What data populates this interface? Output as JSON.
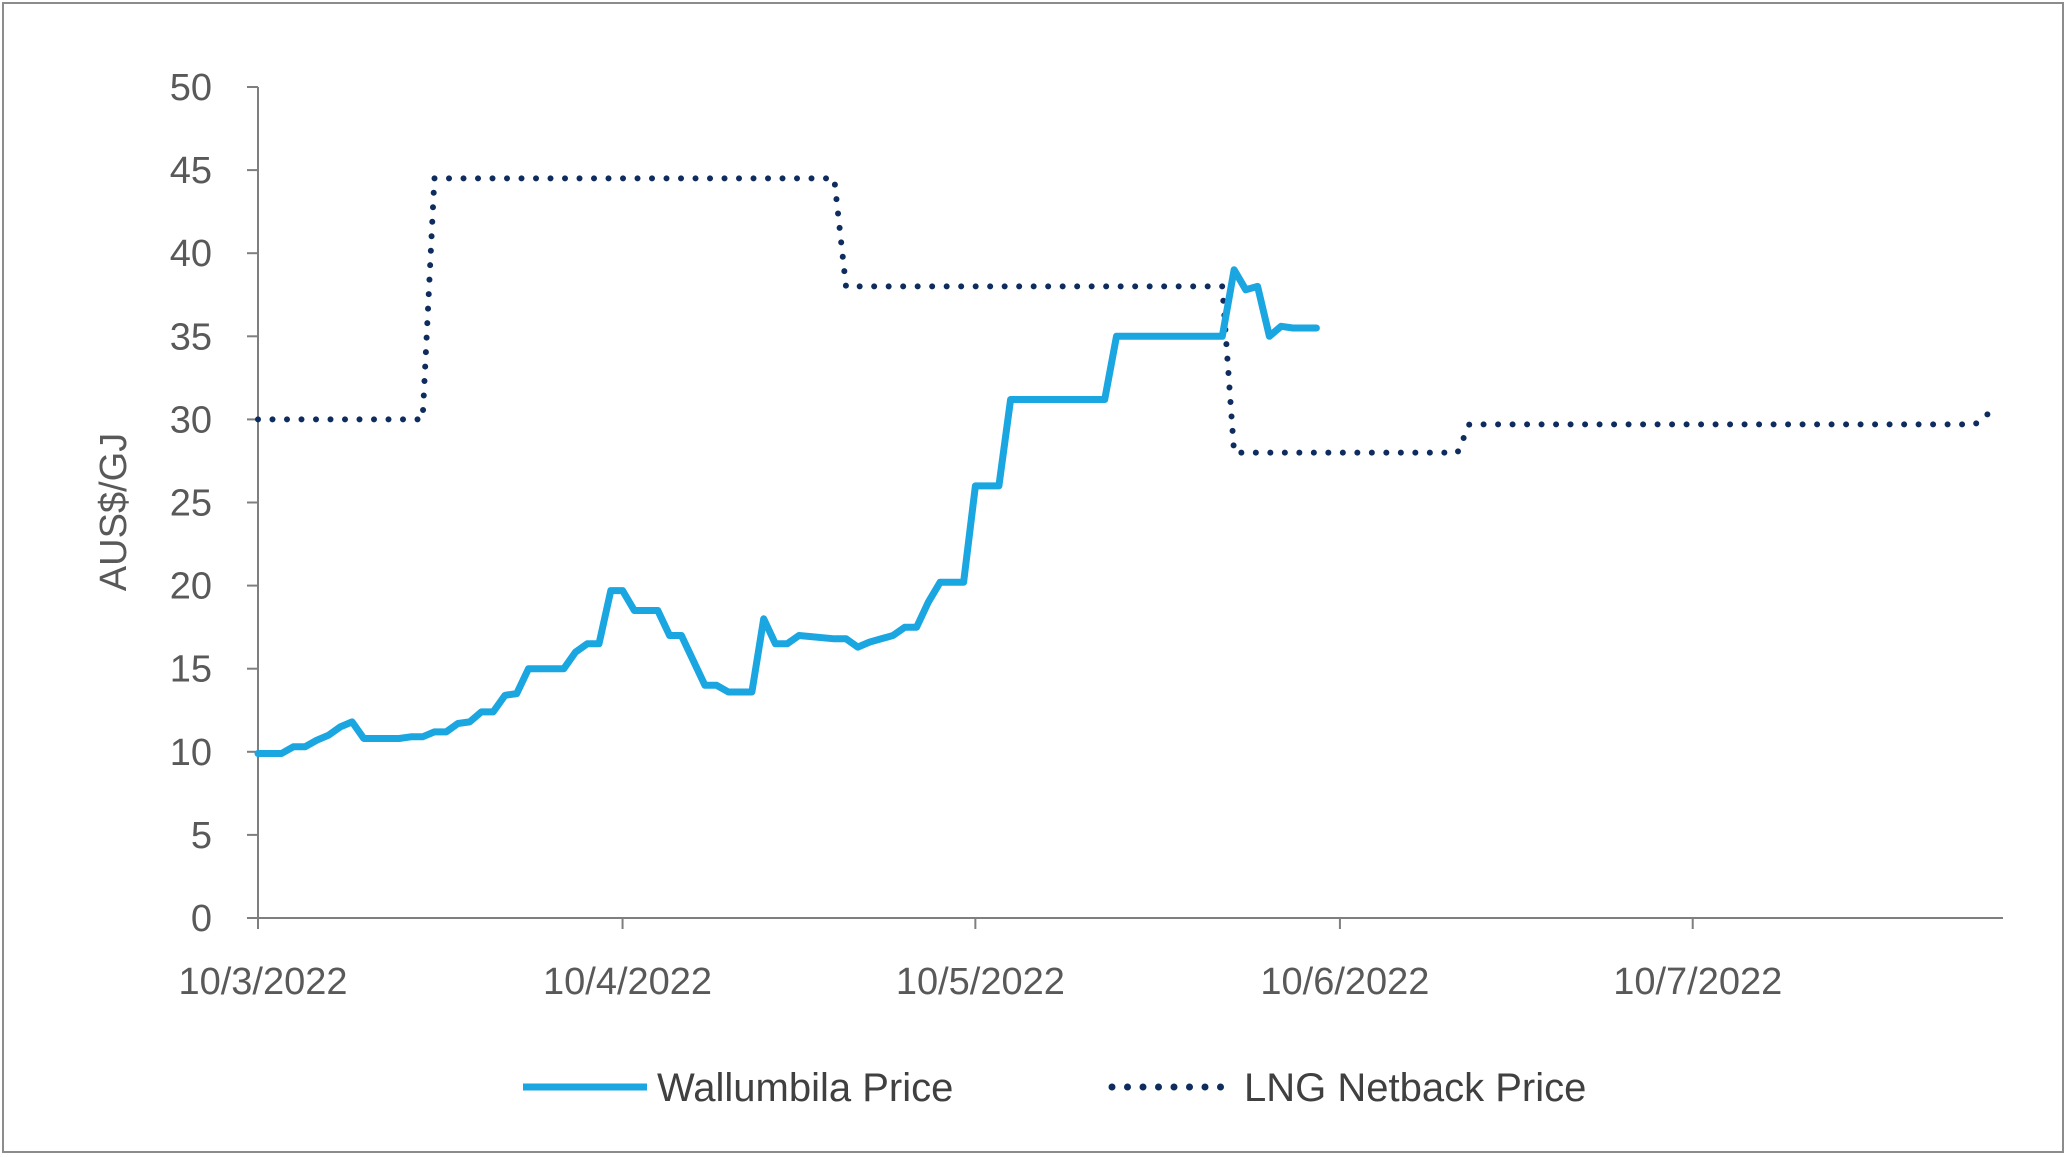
{
  "chart_data": {
    "type": "line",
    "title": "",
    "xlabel": "",
    "ylabel": "AUS$/GJ",
    "ylim": [
      0,
      50
    ],
    "yticks": [
      "0",
      "5",
      "10",
      "15",
      "20",
      "25",
      "30",
      "35",
      "40",
      "45",
      "50"
    ],
    "xticks": [
      "10/3/2022",
      "10/4/2022",
      "10/5/2022",
      "10/6/2022",
      "10/7/2022"
    ],
    "xlim": [
      "2022-03-10",
      "2022-08-05"
    ],
    "grid": false,
    "legend_position": "bottom",
    "series": [
      {
        "name": "Wallumbila Price",
        "color": "#1AA6E1",
        "style": "solid",
        "points": [
          [
            "2022-03-10",
            9.9
          ],
          [
            "2022-03-12",
            9.9
          ],
          [
            "2022-03-13",
            10.3
          ],
          [
            "2022-03-14",
            10.3
          ],
          [
            "2022-03-15",
            10.7
          ],
          [
            "2022-03-16",
            11.0
          ],
          [
            "2022-03-17",
            11.5
          ],
          [
            "2022-03-18",
            11.8
          ],
          [
            "2022-03-19",
            10.8
          ],
          [
            "2022-03-22",
            10.8
          ],
          [
            "2022-03-23",
            10.9
          ],
          [
            "2022-03-24",
            10.9
          ],
          [
            "2022-03-25",
            11.2
          ],
          [
            "2022-03-26",
            11.2
          ],
          [
            "2022-03-27",
            11.7
          ],
          [
            "2022-03-28",
            11.8
          ],
          [
            "2022-03-29",
            12.4
          ],
          [
            "2022-03-30",
            12.4
          ],
          [
            "2022-03-31",
            13.4
          ],
          [
            "2022-04-01",
            13.5
          ],
          [
            "2022-04-02",
            15.0
          ],
          [
            "2022-04-05",
            15.0
          ],
          [
            "2022-04-06",
            16.0
          ],
          [
            "2022-04-07",
            16.5
          ],
          [
            "2022-04-08",
            16.5
          ],
          [
            "2022-04-09",
            19.7
          ],
          [
            "2022-04-10",
            19.7
          ],
          [
            "2022-04-11",
            18.5
          ],
          [
            "2022-04-13",
            18.5
          ],
          [
            "2022-04-14",
            17.0
          ],
          [
            "2022-04-15",
            17.0
          ],
          [
            "2022-04-17",
            14.0
          ],
          [
            "2022-04-18",
            14.0
          ],
          [
            "2022-04-19",
            13.6
          ],
          [
            "2022-04-21",
            13.6
          ],
          [
            "2022-04-22",
            18.0
          ],
          [
            "2022-04-23",
            16.5
          ],
          [
            "2022-04-24",
            16.5
          ],
          [
            "2022-04-25",
            17.0
          ],
          [
            "2022-04-28",
            16.8
          ],
          [
            "2022-04-29",
            16.8
          ],
          [
            "2022-04-30",
            16.3
          ],
          [
            "2022-05-01",
            16.6
          ],
          [
            "2022-05-02",
            16.8
          ],
          [
            "2022-05-03",
            17.0
          ],
          [
            "2022-05-04",
            17.5
          ],
          [
            "2022-05-05",
            17.5
          ],
          [
            "2022-05-06",
            19.0
          ],
          [
            "2022-05-07",
            20.2
          ],
          [
            "2022-05-09",
            20.2
          ],
          [
            "2022-05-10",
            26.0
          ],
          [
            "2022-05-12",
            26.0
          ],
          [
            "2022-05-13",
            31.2
          ],
          [
            "2022-05-21",
            31.2
          ],
          [
            "2022-05-22",
            35.0
          ],
          [
            "2022-05-31",
            35.0
          ],
          [
            "2022-06-01",
            39.0
          ],
          [
            "2022-06-02",
            37.8
          ],
          [
            "2022-06-03",
            38.0
          ],
          [
            "2022-06-04",
            35.0
          ],
          [
            "2022-06-05",
            35.6
          ],
          [
            "2022-06-06",
            35.5
          ],
          [
            "2022-06-08",
            35.5
          ]
        ]
      },
      {
        "name": "LNG Netback Price",
        "color": "#0E2C5E",
        "style": "dotted",
        "points": [
          [
            "2022-03-10",
            30.0
          ],
          [
            "2022-03-24",
            30.0
          ],
          [
            "2022-03-25",
            44.5
          ],
          [
            "2022-04-28",
            44.5
          ],
          [
            "2022-04-29",
            38.0
          ],
          [
            "2022-05-31",
            38.0
          ],
          [
            "2022-06-01",
            28.0
          ],
          [
            "2022-06-20",
            28.0
          ],
          [
            "2022-06-21",
            29.7
          ],
          [
            "2022-08-03",
            29.7
          ],
          [
            "2022-08-04",
            30.3
          ],
          [
            "2022-08-05",
            30.3
          ]
        ]
      }
    ]
  }
}
